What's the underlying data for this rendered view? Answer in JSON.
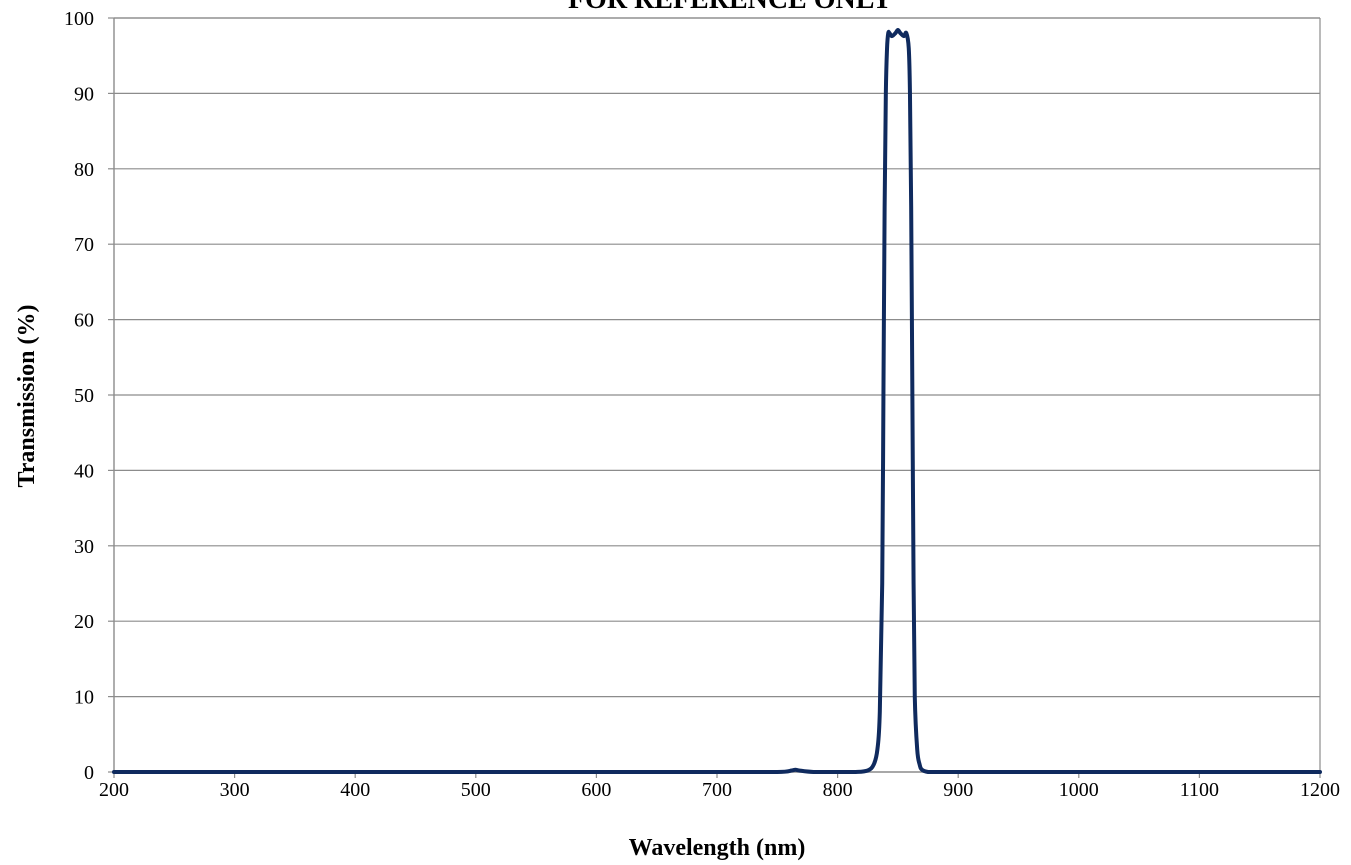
{
  "chart_data": {
    "type": "line",
    "title": "FOR REFERENCE ONLY",
    "xlabel": "Wavelength (nm)",
    "ylabel": "Transmission (%)",
    "xlim": [
      200,
      1200
    ],
    "ylim": [
      0,
      100
    ],
    "x_ticks": [
      200,
      300,
      400,
      500,
      600,
      700,
      800,
      900,
      1000,
      1100,
      1200
    ],
    "y_ticks": [
      0,
      10,
      20,
      30,
      40,
      50,
      60,
      70,
      80,
      90,
      100
    ],
    "grid": "horizontal",
    "legend": "none",
    "line_color": "#0f2a5e",
    "series": [
      {
        "x": [
          200,
          400,
          500,
          600,
          700,
          750,
          762,
          765,
          768,
          780,
          800,
          815,
          825,
          830,
          833,
          835,
          837,
          838,
          839,
          840,
          841,
          842,
          843,
          845,
          848,
          850,
          852,
          855,
          857,
          859,
          860,
          861,
          862,
          863,
          864,
          866,
          868,
          870,
          875,
          880,
          900,
          1000,
          1100,
          1200
        ],
        "y": [
          0,
          0,
          0,
          0,
          0,
          0,
          0.2,
          0.3,
          0.2,
          0,
          0,
          0,
          0.2,
          1,
          3,
          8,
          25,
          50,
          75,
          90,
          96,
          98,
          98,
          97.6,
          98,
          98.4,
          98,
          97.6,
          98,
          96,
          90,
          75,
          50,
          25,
          10,
          3,
          1,
          0.3,
          0,
          0,
          0,
          0,
          0,
          0
        ]
      }
    ]
  }
}
